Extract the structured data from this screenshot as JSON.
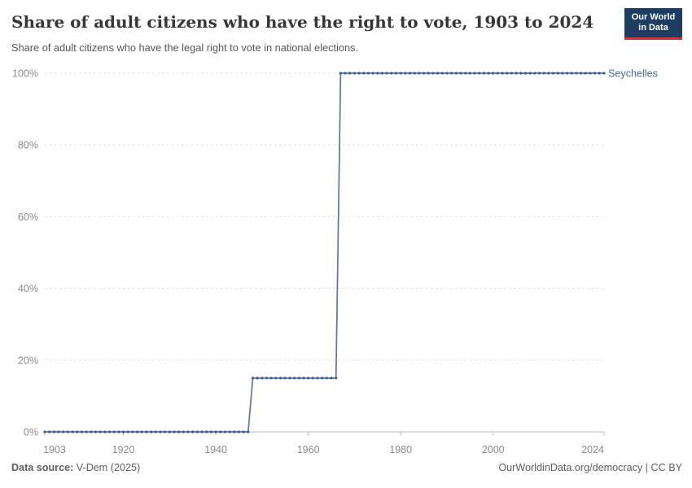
{
  "header": {
    "title": "Share of adult citizens who have the right to vote, 1903 to 2024",
    "subtitle": "Share of adult citizens who have the legal right to vote in national elections.",
    "logo": {
      "line1": "Our World",
      "line2": "in Data"
    }
  },
  "footer": {
    "source_label": "Data source:",
    "source_value": " V-Dem (2025)",
    "link": "OurWorldinData.org/democracy",
    "license": " | CC BY"
  },
  "colors": {
    "line": "#5b76a9",
    "marker": "#3d5a96",
    "series_label": "#4c669c",
    "logo_bg": "#1d3d63",
    "logo_underline": "#cf343e",
    "grid": "#dedede",
    "axis_text": "#8a8a8a"
  },
  "chart_data": {
    "type": "line",
    "title": "Share of adult citizens who have the right to vote, 1903 to 2024",
    "subtitle": "Share of adult citizens who have the legal right to vote in national elections.",
    "xlabel": "",
    "ylabel": "",
    "grid": true,
    "legend_position": "end-of-line label",
    "xlim": [
      1903,
      2024
    ],
    "ylim": [
      0,
      100
    ],
    "x_ticks": [
      1903,
      1920,
      1940,
      1960,
      1980,
      2000,
      2024
    ],
    "y_ticks": [
      0,
      20,
      40,
      60,
      80,
      100
    ],
    "y_tick_suffix": "%",
    "marker_every_year": true,
    "series": [
      {
        "name": "Seychelles",
        "step_segments": [
          {
            "from_year": 1903,
            "to_year": 1947,
            "value": 0
          },
          {
            "from_year": 1948,
            "to_year": 1966,
            "value": 15
          },
          {
            "from_year": 1967,
            "to_year": 2024,
            "value": 100
          }
        ]
      }
    ]
  }
}
